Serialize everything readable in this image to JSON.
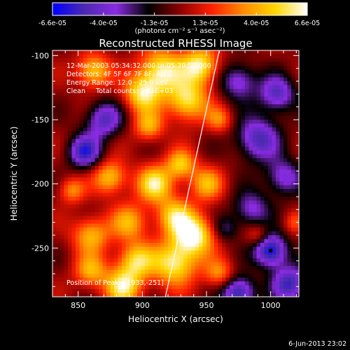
{
  "colors": {
    "background": "#000000",
    "foreground": "#ffffff",
    "colormap": [
      "#0000ff",
      "#4b2ab0",
      "#8a2be2",
      "#000000",
      "#8b0000",
      "#ff2000",
      "#ff8c00",
      "#ffd700",
      "#ffffff"
    ]
  },
  "colorbar": {
    "tick_labels": [
      "-6.6e-05",
      "-4.0e-05",
      "-1.3e-05",
      "1.3e-05",
      "4.0e-05",
      "6.6e-05"
    ],
    "units": "(photons cm⁻² s⁻¹ asec⁻²)",
    "range": [
      -6.6e-05,
      6.6e-05
    ]
  },
  "chart_data": {
    "type": "heatmap",
    "title": "Reconstructed RHESSI Image",
    "xlabel": "Heliocentric X (arcsec)",
    "ylabel": "Heliocentric Y (arcsec)",
    "xlim": [
      830,
      1022
    ],
    "ylim": [
      -288,
      -96
    ],
    "x_ticks": [
      850,
      900,
      950,
      1000
    ],
    "y_ticks": [
      -100,
      -150,
      -200,
      -250
    ],
    "info_lines": [
      "12-Mar-2003 05:34:32.000 to 05:39:58.000",
      "Detectors: 4F 5F 6F 7F 8F, Att 0",
      "Energy Range: 12.0 - 25.0 keV",
      "Clean     Total counts: 2.61E+03"
    ],
    "peak_label": "Position of Peak = [933,-251]",
    "peak": [
      933,
      -251
    ],
    "limb_line": [
      [
        918,
        -288
      ],
      [
        960,
        -96
      ]
    ],
    "marker": [
      1000,
      -252
    ],
    "blobs": [
      {
        "x": 862,
        "y": -112,
        "a": 0.75,
        "s": 9
      },
      {
        "x": 915,
        "y": -112,
        "a": 0.9,
        "s": 12
      },
      {
        "x": 945,
        "y": -108,
        "a": 0.9,
        "s": 10
      },
      {
        "x": 900,
        "y": -130,
        "a": 0.8,
        "s": 10
      },
      {
        "x": 935,
        "y": -135,
        "a": 0.85,
        "s": 11
      },
      {
        "x": 905,
        "y": -155,
        "a": 0.6,
        "s": 8
      },
      {
        "x": 870,
        "y": -150,
        "a": -0.7,
        "s": 10
      },
      {
        "x": 855,
        "y": -175,
        "a": -0.8,
        "s": 9
      },
      {
        "x": 875,
        "y": -195,
        "a": 0.7,
        "s": 9
      },
      {
        "x": 845,
        "y": -205,
        "a": 0.5,
        "s": 7
      },
      {
        "x": 910,
        "y": -200,
        "a": 0.85,
        "s": 10
      },
      {
        "x": 930,
        "y": -185,
        "a": 0.7,
        "s": 8
      },
      {
        "x": 950,
        "y": -200,
        "a": 0.6,
        "s": 9
      },
      {
        "x": 925,
        "y": -225,
        "a": 0.7,
        "s": 10
      },
      {
        "x": 890,
        "y": -230,
        "a": 0.6,
        "s": 10
      },
      {
        "x": 860,
        "y": -240,
        "a": 0.65,
        "s": 10
      },
      {
        "x": 940,
        "y": -240,
        "a": 1.0,
        "s": 11
      },
      {
        "x": 925,
        "y": -262,
        "a": 0.9,
        "s": 12
      },
      {
        "x": 895,
        "y": -260,
        "a": 0.75,
        "s": 10
      },
      {
        "x": 860,
        "y": -268,
        "a": 0.6,
        "s": 9
      },
      {
        "x": 885,
        "y": -280,
        "a": 0.85,
        "s": 10
      },
      {
        "x": 960,
        "y": -270,
        "a": 0.5,
        "s": 8
      },
      {
        "x": 975,
        "y": -120,
        "a": -0.6,
        "s": 10
      },
      {
        "x": 1005,
        "y": -130,
        "a": -0.7,
        "s": 10
      },
      {
        "x": 990,
        "y": -165,
        "a": -0.75,
        "s": 12
      },
      {
        "x": 1010,
        "y": -195,
        "a": -0.6,
        "s": 10
      },
      {
        "x": 985,
        "y": -220,
        "a": -0.55,
        "s": 10
      },
      {
        "x": 1000,
        "y": -252,
        "a": -1.0,
        "s": 9
      },
      {
        "x": 975,
        "y": -285,
        "a": -0.9,
        "s": 9
      },
      {
        "x": 1015,
        "y": -278,
        "a": -0.8,
        "s": 10
      },
      {
        "x": 960,
        "y": -150,
        "a": 0.45,
        "s": 7
      },
      {
        "x": 990,
        "y": -240,
        "a": 0.35,
        "s": 6
      },
      {
        "x": 1018,
        "y": -230,
        "a": 0.3,
        "s": 6
      },
      {
        "x": 965,
        "y": -235,
        "a": -0.35,
        "s": 7
      }
    ]
  },
  "footer": {
    "timestamp": "6-Jun-2013 23:02"
  }
}
